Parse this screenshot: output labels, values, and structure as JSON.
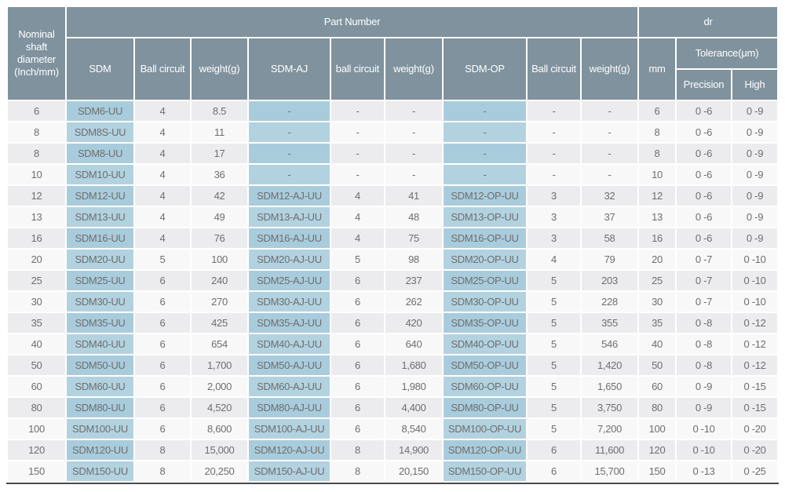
{
  "table": {
    "header": {
      "nominal": "Nominal shaft diameter (Inch/mm)",
      "part_number": "Part Number",
      "dr": "dr",
      "sdm": "SDM",
      "ball_circuit_1": "Ball circuit",
      "weight_1": "weight(g)",
      "sdm_aj": "SDM-AJ",
      "ball_circuit_2": "ball circuit",
      "weight_2": "weight(g)",
      "sdm_op": "SDM-OP",
      "ball_circuit_3": "Ball circuit",
      "weight_3": "weight(g)",
      "mm": "mm",
      "tolerance": "Tolerance(μm)",
      "precision": "Precision",
      "high": "High"
    },
    "column_names": [
      "nominal-diameter",
      "sdm-part-number",
      "ball-circuit",
      "weight-g",
      "sdm-aj-part-number",
      "ball-circuit",
      "weight-g",
      "sdm-op-part-number",
      "ball-circuit",
      "weight-g",
      "dr-mm",
      "tolerance-precision",
      "tolerance-high"
    ],
    "rows": [
      [
        "6",
        "SDM6-UU",
        "4",
        "8.5",
        "-",
        "-",
        "-",
        "-",
        "-",
        "-",
        "6",
        "0 -6",
        "0 -9"
      ],
      [
        "8",
        "SDM8S-UU",
        "4",
        "11",
        "-",
        "-",
        "-",
        "-",
        "-",
        "-",
        "8",
        "0 -6",
        "0 -9"
      ],
      [
        "8",
        "SDM8-UU",
        "4",
        "17",
        "-",
        "-",
        "-",
        "-",
        "-",
        "-",
        "8",
        "0 -6",
        "0 -9"
      ],
      [
        "10",
        "SDM10-UU",
        "4",
        "36",
        "-",
        "-",
        "-",
        "-",
        "-",
        "-",
        "10",
        "0 -6",
        "0 -9"
      ],
      [
        "12",
        "SDM12-UU",
        "4",
        "42",
        "SDM12-AJ-UU",
        "4",
        "41",
        "SDM12-OP-UU",
        "3",
        "32",
        "12",
        "0 -6",
        "0 -9"
      ],
      [
        "13",
        "SDM13-UU",
        "4",
        "49",
        "SDM13-AJ-UU",
        "4",
        "48",
        "SDM13-OP-UU",
        "3",
        "37",
        "13",
        "0 -6",
        "0 -9"
      ],
      [
        "16",
        "SDM16-UU",
        "4",
        "76",
        "SDM16-AJ-UU",
        "4",
        "75",
        "SDM16-OP-UU",
        "3",
        "58",
        "16",
        "0 -6",
        "0 -9"
      ],
      [
        "20",
        "SDM20-UU",
        "5",
        "100",
        "SDM20-AJ-UU",
        "5",
        "98",
        "SDM20-OP-UU",
        "4",
        "79",
        "20",
        "0 -7",
        "0 -10"
      ],
      [
        "25",
        "SDM25-UU",
        "6",
        "240",
        "SDM25-AJ-UU",
        "6",
        "237",
        "SDM25-OP-UU",
        "5",
        "203",
        "25",
        "0 -7",
        "0 -10"
      ],
      [
        "30",
        "SDM30-UU",
        "6",
        "270",
        "SDM30-AJ-UU",
        "6",
        "262",
        "SDM30-OP-UU",
        "5",
        "228",
        "30",
        "0 -7",
        "0 -10"
      ],
      [
        "35",
        "SDM35-UU",
        "6",
        "425",
        "SDM35-AJ-UU",
        "6",
        "420",
        "SDM35-OP-UU",
        "5",
        "355",
        "35",
        "0 -8",
        "0 -12"
      ],
      [
        "40",
        "SDM40-UU",
        "6",
        "654",
        "SDM40-AJ-UU",
        "6",
        "640",
        "SDM40-OP-UU",
        "5",
        "546",
        "40",
        "0 -8",
        "0 -12"
      ],
      [
        "50",
        "SDM50-UU",
        "6",
        "1,700",
        "SDM50-AJ-UU",
        "6",
        "1,680",
        "SDM50-OP-UU",
        "5",
        "1,420",
        "50",
        "0 -8",
        "0 -12"
      ],
      [
        "60",
        "SDM60-UU",
        "6",
        "2,000",
        "SDM60-AJ-UU",
        "6",
        "1,980",
        "SDM60-OP-UU",
        "5",
        "1,650",
        "60",
        "0 -9",
        "0 -15"
      ],
      [
        "80",
        "SDM80-UU",
        "6",
        "4,520",
        "SDM80-AJ-UU",
        "6",
        "4,400",
        "SDM80-OP-UU",
        "5",
        "3,750",
        "80",
        "0 -9",
        "0 -15"
      ],
      [
        "100",
        "SDM100-UU",
        "6",
        "8,600",
        "SDM100-AJ-UU",
        "6",
        "8,540",
        "SDM100-OP-UU",
        "5",
        "7,200",
        "100",
        "0 -10",
        "0 -20"
      ],
      [
        "120",
        "SDM120-UU",
        "8",
        "15,000",
        "SDM120-AJ-UU",
        "8",
        "14,900",
        "SDM120-OP-UU",
        "6",
        "11,600",
        "120",
        "0 -10",
        "0 -20"
      ],
      [
        "150",
        "SDM150-UU",
        "8",
        "20,250",
        "SDM150-AJ-UU",
        "8",
        "20,150",
        "SDM150-OP-UU",
        "6",
        "15,700",
        "150",
        "0 -13",
        "0 -25"
      ]
    ],
    "blue_column_indexes": [
      1,
      4,
      7
    ]
  },
  "colors": {
    "header_bg": "#7f929e",
    "header_text": "#ffffff",
    "blue_cell_odd": "#a9ccdc",
    "blue_cell_even": "#b2d2e0",
    "row_odd_bg": "#ececee",
    "row_even_bg": "#f8f8f9",
    "data_text": "#6e6e6e",
    "bottom_border": "#4a4a4a"
  }
}
